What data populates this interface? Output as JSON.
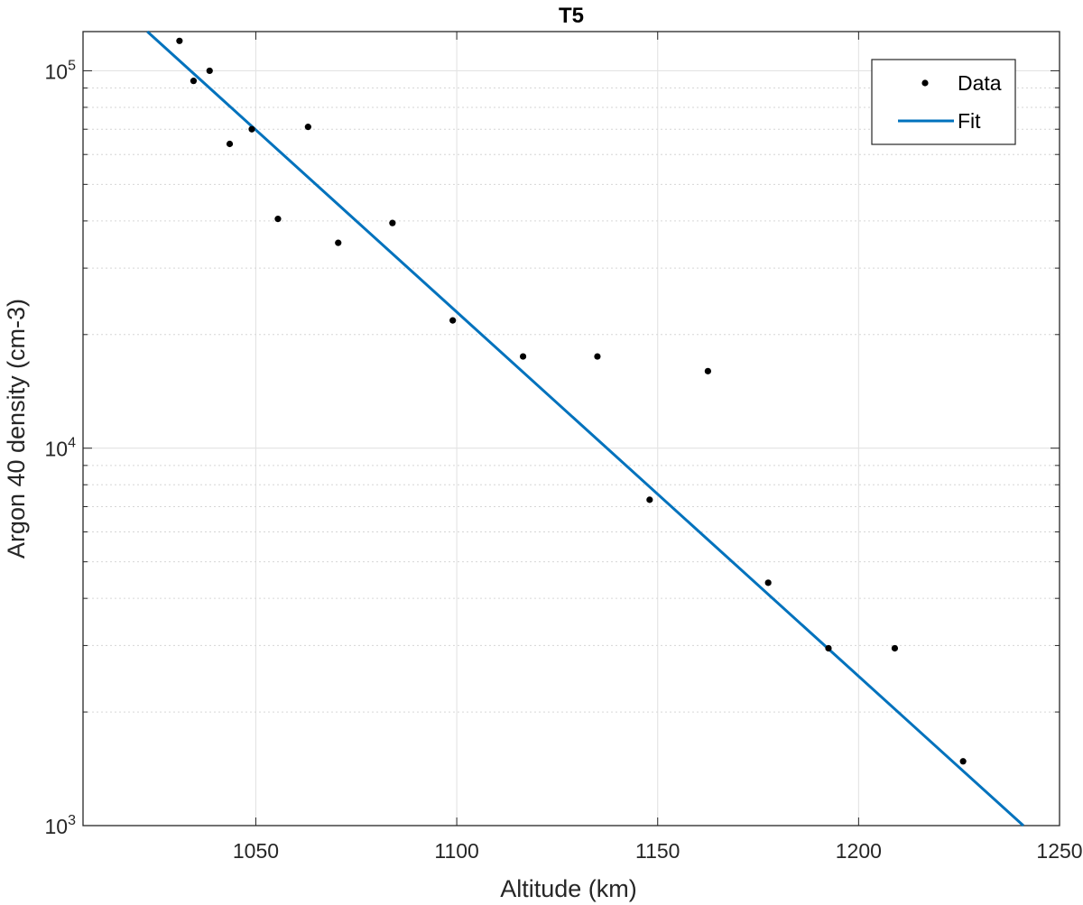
{
  "chart_data": {
    "type": "scatter",
    "title": "T5",
    "xlabel": "Altitude (km)",
    "ylabel": "Argon 40 density (cm-3)",
    "xlim": [
      1007,
      1250
    ],
    "ylim": [
      1000,
      127000
    ],
    "yscale": "log",
    "grid": true,
    "legend_position": "top-right",
    "x_ticks": [
      1050,
      1100,
      1150,
      1200,
      1250
    ],
    "x_tick_labels": [
      "1050",
      "1100",
      "1150",
      "1200",
      "1250"
    ],
    "y_ticks": [
      {
        "value": 1000,
        "base": "10",
        "exp": "3"
      },
      {
        "value": 10000,
        "base": "10",
        "exp": "4"
      },
      {
        "value": 100000,
        "base": "10",
        "exp": "5"
      }
    ],
    "series": [
      {
        "name": "Data",
        "kind": "points",
        "color": "#000000",
        "x": [
          1031,
          1034.5,
          1038.5,
          1043.5,
          1049,
          1055.5,
          1063,
          1070.5,
          1084,
          1099,
          1116.5,
          1135,
          1148,
          1162.5,
          1177.5,
          1192.5,
          1209,
          1226
        ],
        "y": [
          120000,
          94000,
          100000,
          64000,
          70000,
          40500,
          71000,
          35000,
          39500,
          21800,
          17500,
          17500,
          7300,
          16000,
          4400,
          2950,
          2950,
          1480
        ]
      },
      {
        "name": "Fit",
        "kind": "line",
        "color": "#0072BD",
        "x": [
          1023,
          1241
        ],
        "y": [
          127000,
          1000
        ]
      }
    ]
  }
}
